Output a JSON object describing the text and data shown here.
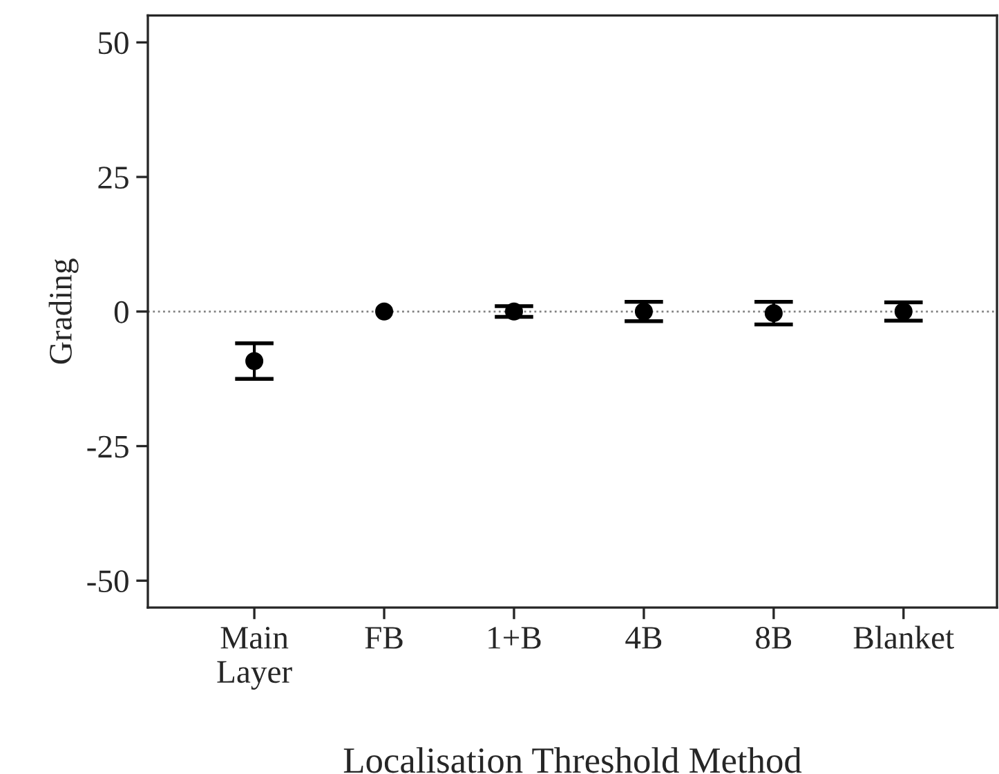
{
  "chart_data": {
    "type": "scatter",
    "xlabel": "Localisation Threshold Method",
    "ylabel": "Grading",
    "categories": [
      "Main\nLayer",
      "FB",
      "1+B",
      "4B",
      "8B",
      "Blanket"
    ],
    "values": [
      -9.2,
      0,
      0,
      0,
      -0.3,
      0
    ],
    "errors": [
      3.3,
      null,
      1.0,
      1.8,
      2.1,
      1.7
    ],
    "color": "#000000",
    "marker": "circle",
    "ylim": [
      -55,
      55
    ],
    "yticks": [
      {
        "value": -50,
        "label": "-50"
      },
      {
        "value": -25,
        "label": "-25"
      },
      0,
      25,
      50
    ],
    "ref_lines": [
      {
        "axis": "y",
        "value": 0,
        "color": "#808080",
        "line_style": "dotted"
      }
    ],
    "grid": false
  }
}
